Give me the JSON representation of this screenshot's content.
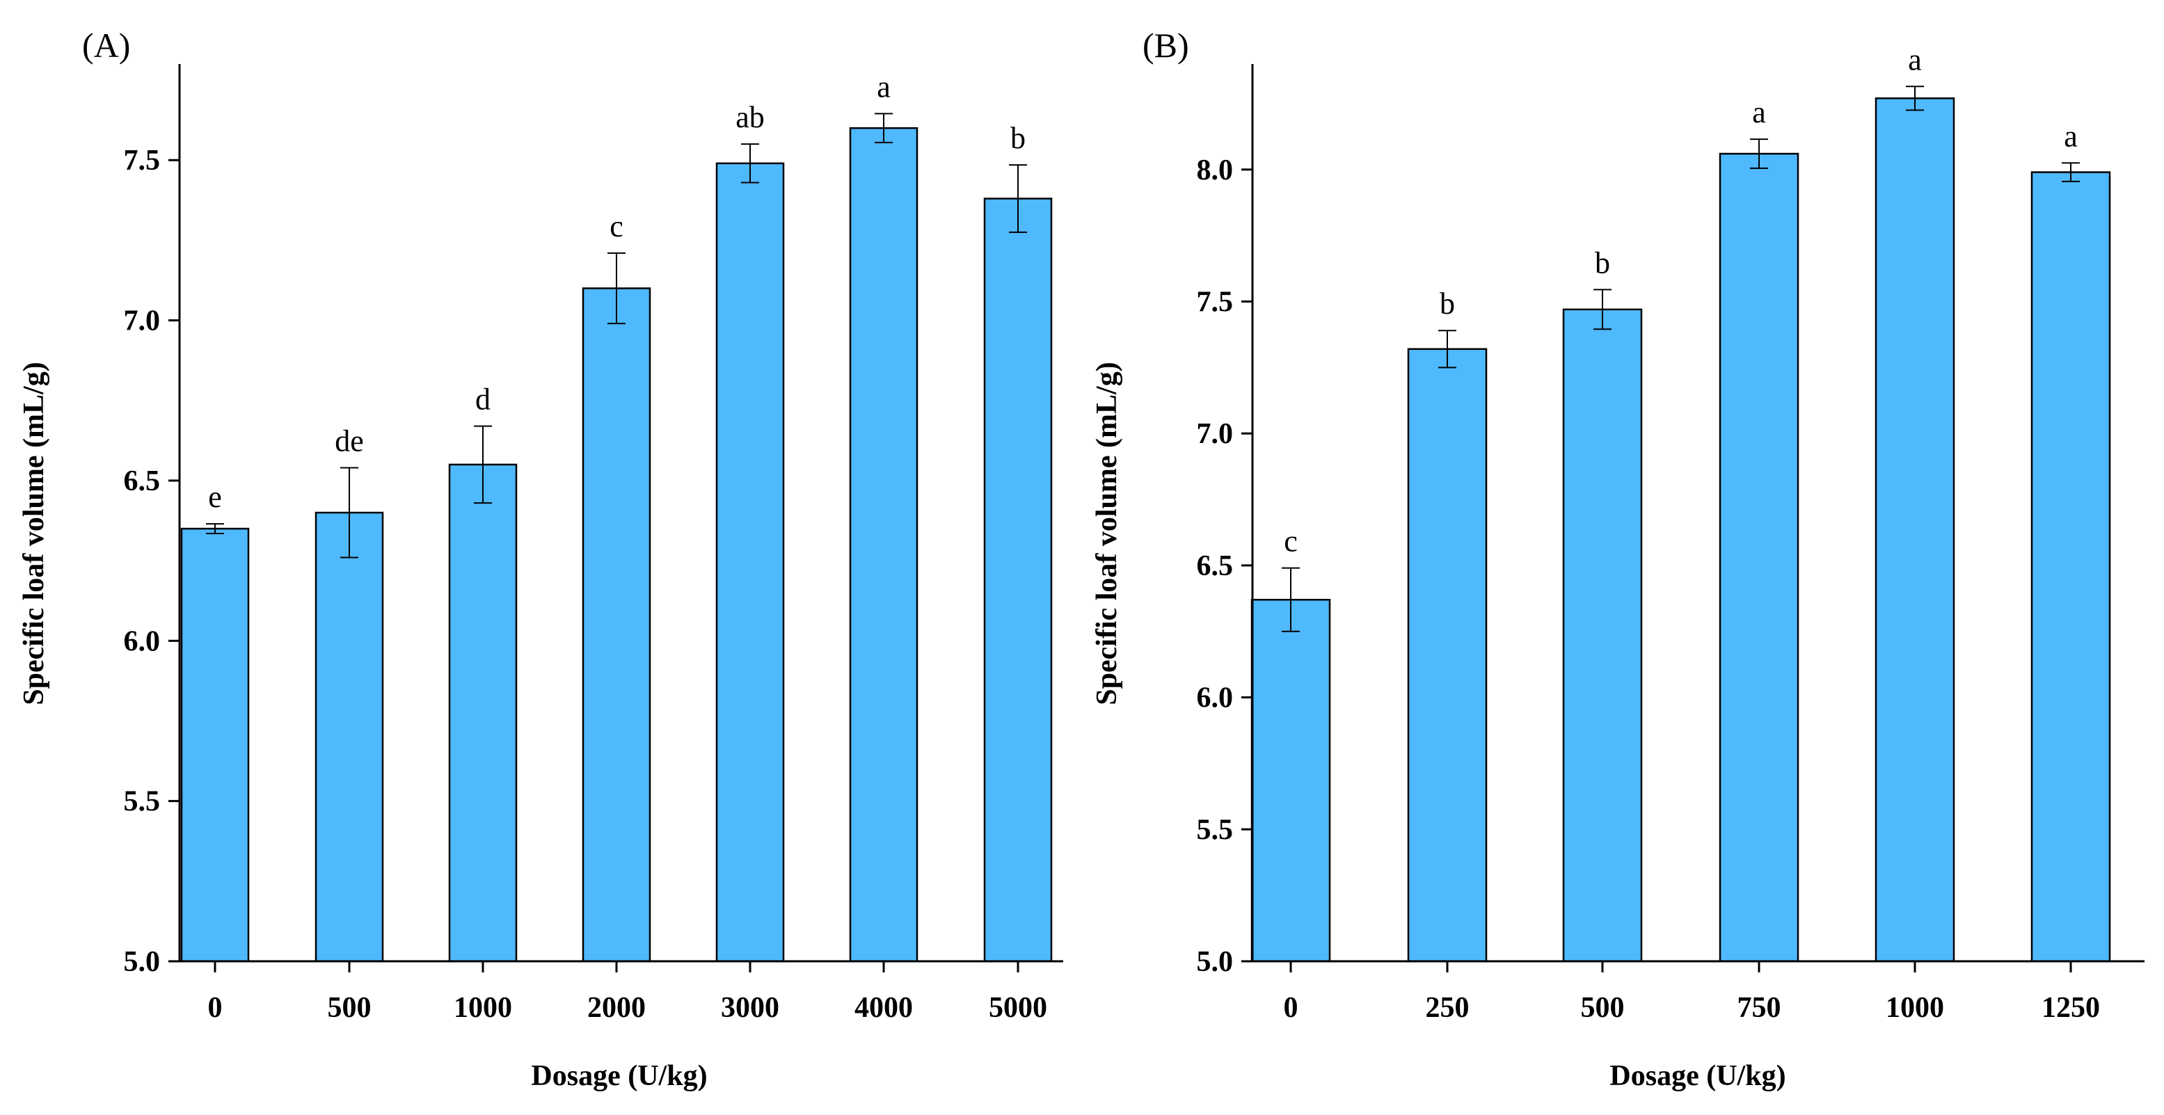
{
  "chart_data": [
    {
      "type": "bar",
      "panel_label": "(A)",
      "title": "",
      "xlabel": "Dosage (U/kg)",
      "ylabel": "Specific loaf volume (mL/g)",
      "categories": [
        "0",
        "500",
        "1000",
        "2000",
        "3000",
        "4000",
        "5000"
      ],
      "values": [
        6.35,
        6.4,
        6.55,
        7.1,
        7.49,
        7.6,
        7.38
      ],
      "errors": [
        0.015,
        0.14,
        0.12,
        0.11,
        0.06,
        0.045,
        0.105
      ],
      "significance": [
        "e",
        "de",
        "d",
        "c",
        "ab",
        "a",
        "b"
      ],
      "ylim": [
        5.0,
        7.8
      ],
      "yticks": [
        5.0,
        5.5,
        6.0,
        6.5,
        7.0,
        7.5
      ],
      "ytick_labels": [
        "5.0",
        "5.5",
        "6.0",
        "6.5",
        "7.0",
        "7.5"
      ],
      "bar_color": "#4fb9fd",
      "grid": false
    },
    {
      "type": "bar",
      "panel_label": "(B)",
      "title": "",
      "xlabel": "Dosage (U/kg)",
      "ylabel": "Specific loaf volume (mL/g)",
      "categories": [
        "0",
        "250",
        "500",
        "750",
        "1000",
        "1250"
      ],
      "values": [
        6.37,
        7.32,
        7.47,
        8.06,
        8.27,
        7.99
      ],
      "errors": [
        0.12,
        0.07,
        0.075,
        0.055,
        0.045,
        0.035
      ],
      "significance": [
        "c",
        "b",
        "b",
        "a",
        "a",
        "a"
      ],
      "ylim": [
        5.0,
        8.4
      ],
      "yticks": [
        5.0,
        5.5,
        6.0,
        6.5,
        7.0,
        7.5,
        8.0
      ],
      "ytick_labels": [
        "5.0",
        "5.5",
        "6.0",
        "6.5",
        "7.0",
        "7.5",
        "8.0"
      ],
      "bar_color": "#4fb9fd",
      "grid": false
    }
  ]
}
